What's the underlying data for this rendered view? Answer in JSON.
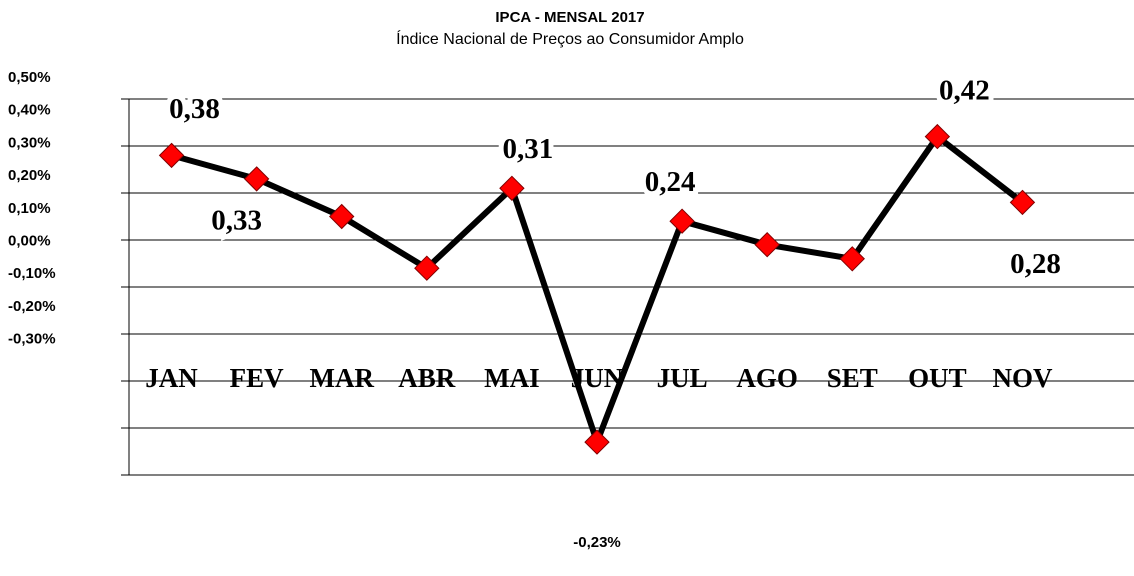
{
  "chart_data": {
    "type": "line",
    "title": "IPCA - MENSAL 2017",
    "subtitle": "Índice Nacional de Preços ao Consumidor Amplo",
    "categories": [
      "JAN",
      "FEV",
      "MAR",
      "ABR",
      "MAI",
      "JUN",
      "JUL",
      "AGO",
      "SET",
      "OUT",
      "NOV"
    ],
    "series": [
      {
        "name": "IPCA",
        "color": "#ff0000",
        "values": [
          0.38,
          0.33,
          0.25,
          0.14,
          0.31,
          -0.23,
          0.24,
          0.19,
          0.16,
          0.42,
          0.28
        ],
        "value_labels": [
          "0,38",
          "0,33",
          null,
          null,
          "0,31",
          "-0,23%",
          "0,24",
          null,
          null,
          "0,42",
          "0,28"
        ]
      }
    ],
    "ylim": [
      -0.3,
      0.5
    ],
    "yticks": [
      {
        "value": 0.5,
        "label": "0,50%"
      },
      {
        "value": 0.4,
        "label": "0,40%"
      },
      {
        "value": 0.3,
        "label": "0,30%"
      },
      {
        "value": 0.2,
        "label": "0,20%"
      },
      {
        "value": 0.1,
        "label": "0,10%"
      },
      {
        "value": 0,
        "label": "0,00%"
      },
      {
        "value": -0.1,
        "label": "-0,10%"
      },
      {
        "value": -0.2,
        "label": "-0,20%"
      },
      {
        "value": -0.3,
        "label": "-0,30%"
      }
    ],
    "grid": true
  }
}
